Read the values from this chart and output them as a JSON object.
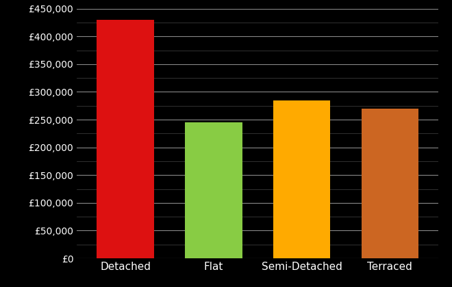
{
  "categories": [
    "Detached",
    "Flat",
    "Semi-Detached",
    "Terraced"
  ],
  "values": [
    430000,
    245000,
    285000,
    270000
  ],
  "bar_colors": [
    "#dd1111",
    "#88cc44",
    "#ffaa00",
    "#cc6622"
  ],
  "background_color": "#000000",
  "text_color": "#ffffff",
  "major_grid_color": "#888888",
  "minor_grid_color": "#444444",
  "ylim": [
    0,
    450000
  ],
  "yticks_major": [
    0,
    50000,
    100000,
    150000,
    200000,
    250000,
    300000,
    350000,
    400000,
    450000
  ],
  "tick_fontsize": 10,
  "label_fontsize": 11,
  "bar_width": 0.65,
  "figsize": [
    6.6,
    4.2
  ],
  "dpi": 100
}
